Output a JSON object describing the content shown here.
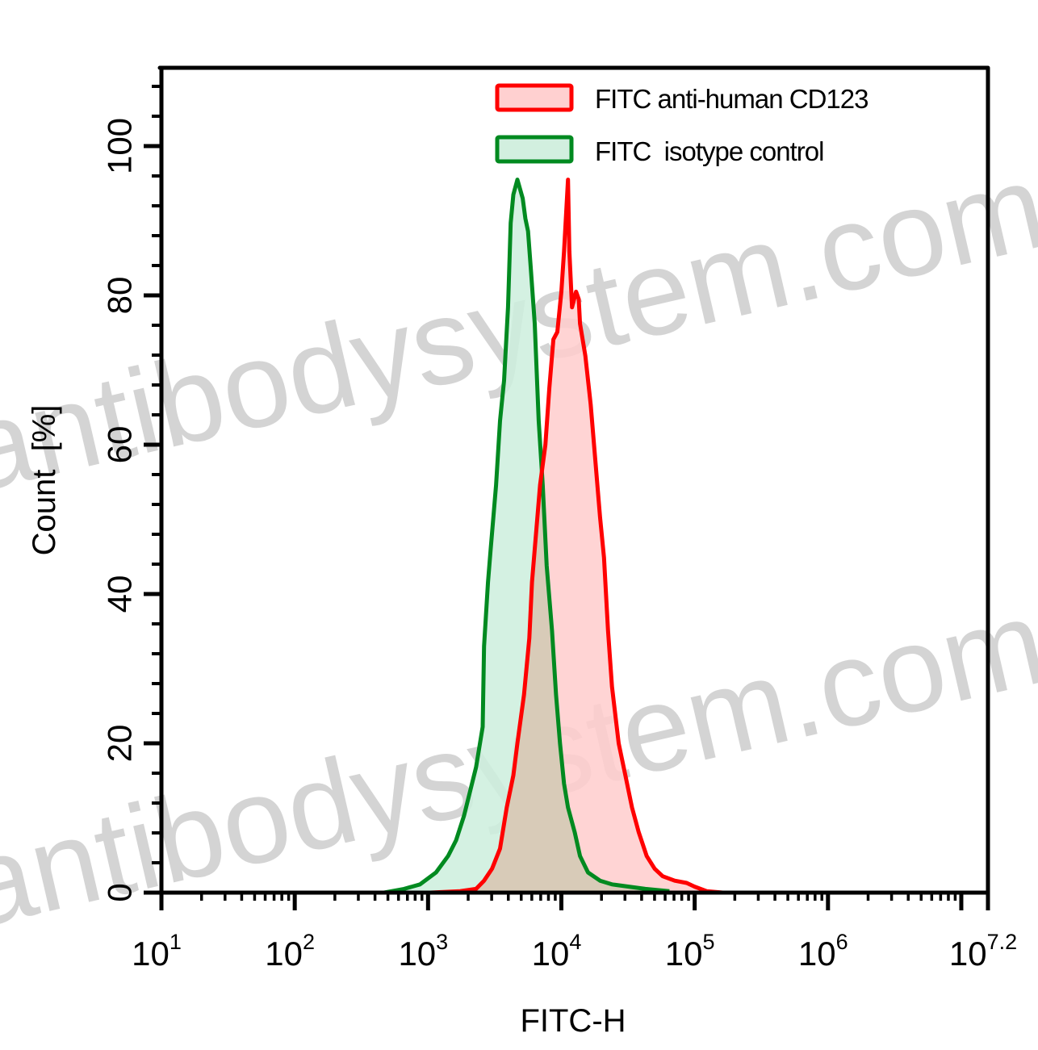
{
  "chart_data": {
    "type": "area",
    "title": "",
    "xlabel": "FITC-H",
    "ylabel": "Count  [%]",
    "xscale": "log",
    "xlim_log10": [
      1,
      7.2
    ],
    "ylim": [
      0,
      110
    ],
    "x_ticks": [
      {
        "base": "10",
        "exp": "1",
        "log10": 1
      },
      {
        "base": "10",
        "exp": "2",
        "log10": 2
      },
      {
        "base": "10",
        "exp": "3",
        "log10": 3
      },
      {
        "base": "10",
        "exp": "4",
        "log10": 4
      },
      {
        "base": "10",
        "exp": "5",
        "log10": 5
      },
      {
        "base": "10",
        "exp": "6",
        "log10": 6
      },
      {
        "base": "10",
        "exp": "7.2",
        "log10": 7.2
      }
    ],
    "y_ticks": [
      0,
      20,
      40,
      60,
      80,
      100
    ],
    "grid": false,
    "legend_position": "top-right",
    "series": [
      {
        "name": "FITC anti-human CD123",
        "line_color": "#ff0000",
        "fill_color": "#ffcccc",
        "peak_log10_x": 4.05,
        "peak_y": 95.5,
        "points_log10x_y": [
          [
            3.02,
            0
          ],
          [
            3.24,
            0.2
          ],
          [
            3.36,
            0.5
          ],
          [
            3.42,
            1.6
          ],
          [
            3.48,
            3.2
          ],
          [
            3.54,
            5.9
          ],
          [
            3.59,
            11.4
          ],
          [
            3.64,
            15.7
          ],
          [
            3.67,
            20
          ],
          [
            3.72,
            26.5
          ],
          [
            3.76,
            34.1
          ],
          [
            3.78,
            41.6
          ],
          [
            3.81,
            48.1
          ],
          [
            3.84,
            54.6
          ],
          [
            3.88,
            60
          ],
          [
            3.91,
            67.6
          ],
          [
            3.94,
            74.1
          ],
          [
            3.97,
            75.1
          ],
          [
            4.0,
            80.5
          ],
          [
            4.02,
            85.9
          ],
          [
            4.05,
            95.5
          ],
          [
            4.06,
            85.9
          ],
          [
            4.08,
            78.4
          ],
          [
            4.11,
            80.5
          ],
          [
            4.13,
            79.5
          ],
          [
            4.14,
            76.2
          ],
          [
            4.18,
            71.9
          ],
          [
            4.22,
            65.4
          ],
          [
            4.25,
            58.9
          ],
          [
            4.29,
            50.3
          ],
          [
            4.32,
            44.9
          ],
          [
            4.35,
            35.1
          ],
          [
            4.38,
            27.6
          ],
          [
            4.43,
            20
          ],
          [
            4.48,
            15.7
          ],
          [
            4.53,
            11.4
          ],
          [
            4.58,
            8.1
          ],
          [
            4.64,
            4.9
          ],
          [
            4.7,
            3.2
          ],
          [
            4.76,
            2.2
          ],
          [
            4.85,
            1.6
          ],
          [
            4.94,
            1.3
          ],
          [
            5.0,
            0.8
          ],
          [
            5.09,
            0.2
          ],
          [
            5.21,
            0
          ]
        ]
      },
      {
        "name": "FITC  isotype control",
        "line_color": "#008a20",
        "fill_color": "#cdeedd",
        "peak_log10_x": 3.7,
        "peak_y": 95,
        "points_log10x_y": [
          [
            2.67,
            0
          ],
          [
            2.82,
            0.5
          ],
          [
            2.94,
            1.1
          ],
          [
            3.06,
            2.7
          ],
          [
            3.15,
            4.9
          ],
          [
            3.21,
            7
          ],
          [
            3.27,
            10.3
          ],
          [
            3.36,
            16.8
          ],
          [
            3.41,
            22.2
          ],
          [
            3.42,
            33
          ],
          [
            3.45,
            41.6
          ],
          [
            3.47,
            46
          ],
          [
            3.51,
            54.6
          ],
          [
            3.54,
            63.2
          ],
          [
            3.57,
            68.6
          ],
          [
            3.6,
            78.4
          ],
          [
            3.62,
            89.7
          ],
          [
            3.64,
            93.5
          ],
          [
            3.67,
            95.5
          ],
          [
            3.71,
            93
          ],
          [
            3.73,
            90.3
          ],
          [
            3.75,
            88.6
          ],
          [
            3.77,
            83.8
          ],
          [
            3.8,
            76.2
          ],
          [
            3.83,
            63.2
          ],
          [
            3.86,
            54.6
          ],
          [
            3.89,
            43.8
          ],
          [
            3.93,
            35.1
          ],
          [
            3.96,
            26.5
          ],
          [
            3.99,
            20
          ],
          [
            4.02,
            14.6
          ],
          [
            4.05,
            11.4
          ],
          [
            4.1,
            8.1
          ],
          [
            4.14,
            4.9
          ],
          [
            4.2,
            2.7
          ],
          [
            4.29,
            1.6
          ],
          [
            4.38,
            1.1
          ],
          [
            4.63,
            0.5
          ],
          [
            4.81,
            0.2
          ]
        ]
      }
    ],
    "annotations": [
      {
        "type": "watermark",
        "text": "antibodysystem.com",
        "count": 2,
        "angle_deg": -13
      }
    ]
  },
  "legend": {
    "items": [
      {
        "label": "FITC anti-human CD123",
        "line_color": "#ff0000",
        "fill_color": "#ffcccc"
      },
      {
        "label": "FITC  isotype control",
        "line_color": "#008a20",
        "fill_color": "#cdeedd"
      }
    ]
  },
  "watermark": {
    "text": "antibodysystem.com"
  },
  "overlap_fill_color": "#d8cbb8"
}
